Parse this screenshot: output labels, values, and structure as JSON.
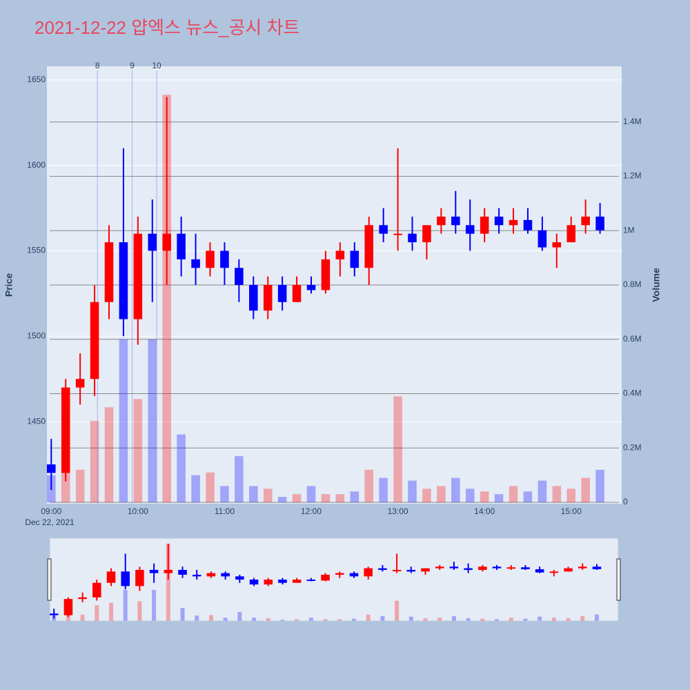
{
  "chart_data": {
    "type": "candlestick",
    "title": "2021-12-22 얍엑스 뉴스_공시 차트",
    "x_title_date": "Dec 22, 2021",
    "y_title": "Price",
    "y2_title": "Volume",
    "increasing_color": "#ff0000",
    "decreasing_color": "#0000ff",
    "x": [
      "09:00",
      "09:10",
      "09:20",
      "09:30",
      "09:40",
      "09:50",
      "10:00",
      "10:10",
      "10:20",
      "10:30",
      "10:40",
      "10:50",
      "11:00",
      "11:10",
      "11:20",
      "11:30",
      "11:40",
      "11:50",
      "12:00",
      "12:10",
      "12:20",
      "12:30",
      "12:40",
      "12:50",
      "13:00",
      "13:10",
      "13:20",
      "13:30",
      "13:40",
      "13:50",
      "14:00",
      "14:10",
      "14:20",
      "14:30",
      "14:40",
      "14:50",
      "15:00",
      "15:10",
      "15:20"
    ],
    "open": [
      1425,
      1420,
      1470,
      1475,
      1520,
      1555,
      1510,
      1560,
      1550,
      1560,
      1545,
      1540,
      1550,
      1540,
      1530,
      1515,
      1530,
      1520,
      1530,
      1527,
      1545,
      1550,
      1540,
      1565,
      1560,
      1560,
      1555,
      1565,
      1570,
      1565,
      1560,
      1570,
      1565,
      1568,
      1562,
      1552,
      1555,
      1565,
      1570
    ],
    "high": [
      1440,
      1475,
      1490,
      1530,
      1565,
      1610,
      1570,
      1580,
      1640,
      1570,
      1560,
      1555,
      1555,
      1545,
      1535,
      1535,
      1535,
      1535,
      1535,
      1550,
      1555,
      1555,
      1570,
      1575,
      1610,
      1570,
      1565,
      1575,
      1585,
      1580,
      1575,
      1575,
      1575,
      1575,
      1570,
      1560,
      1570,
      1580,
      1578
    ],
    "low": [
      1410,
      1415,
      1460,
      1465,
      1510,
      1500,
      1495,
      1520,
      1530,
      1535,
      1530,
      1535,
      1530,
      1520,
      1510,
      1510,
      1515,
      1520,
      1525,
      1525,
      1535,
      1535,
      1530,
      1555,
      1550,
      1550,
      1545,
      1560,
      1560,
      1550,
      1555,
      1560,
      1560,
      1560,
      1550,
      1540,
      1555,
      1560,
      1560
    ],
    "close": [
      1420,
      1470,
      1475,
      1520,
      1555,
      1510,
      1560,
      1550,
      1560,
      1545,
      1540,
      1550,
      1540,
      1530,
      1515,
      1530,
      1520,
      1530,
      1527,
      1545,
      1550,
      1540,
      1565,
      1560,
      1560,
      1555,
      1565,
      1570,
      1565,
      1560,
      1570,
      1565,
      1568,
      1562,
      1552,
      1555,
      1565,
      1570,
      1562
    ],
    "volume": [
      100000,
      150000,
      120000,
      300000,
      350000,
      600000,
      380000,
      600000,
      1500000,
      250000,
      100000,
      110000,
      60000,
      170000,
      60000,
      50000,
      20000,
      30000,
      60000,
      30000,
      30000,
      40000,
      120000,
      90000,
      390000,
      80000,
      50000,
      60000,
      90000,
      50000,
      40000,
      30000,
      60000,
      40000,
      80000,
      60000,
      50000,
      90000,
      120000
    ],
    "xlim": [
      "08:57",
      "15:35"
    ],
    "xticks": [
      "09:00",
      "10:00",
      "11:00",
      "12:00",
      "13:00",
      "14:00",
      "15:00"
    ],
    "ylim": [
      1402,
      1658
    ],
    "yticks": [
      1450,
      1500,
      1550,
      1600,
      1650
    ],
    "y2lim": [
      -5000,
      1605000
    ],
    "y2ticks": [
      0,
      {
        "value": 200000,
        "label": "0.2M"
      },
      {
        "value": 400000,
        "label": "0.4M"
      },
      {
        "value": 600000,
        "label": "0.6M"
      },
      {
        "value": 800000,
        "label": "0.8M"
      },
      {
        "value": 1000000,
        "label": "1M"
      },
      {
        "value": 1200000,
        "label": "1.2M"
      },
      {
        "value": 1400000,
        "label": "1.4M"
      }
    ],
    "annotations": [
      {
        "x": "09:32",
        "text": "8"
      },
      {
        "x": "09:56",
        "text": "9"
      },
      {
        "x": "10:13",
        "text": "10"
      }
    ],
    "grid": true,
    "range_slider": true
  }
}
